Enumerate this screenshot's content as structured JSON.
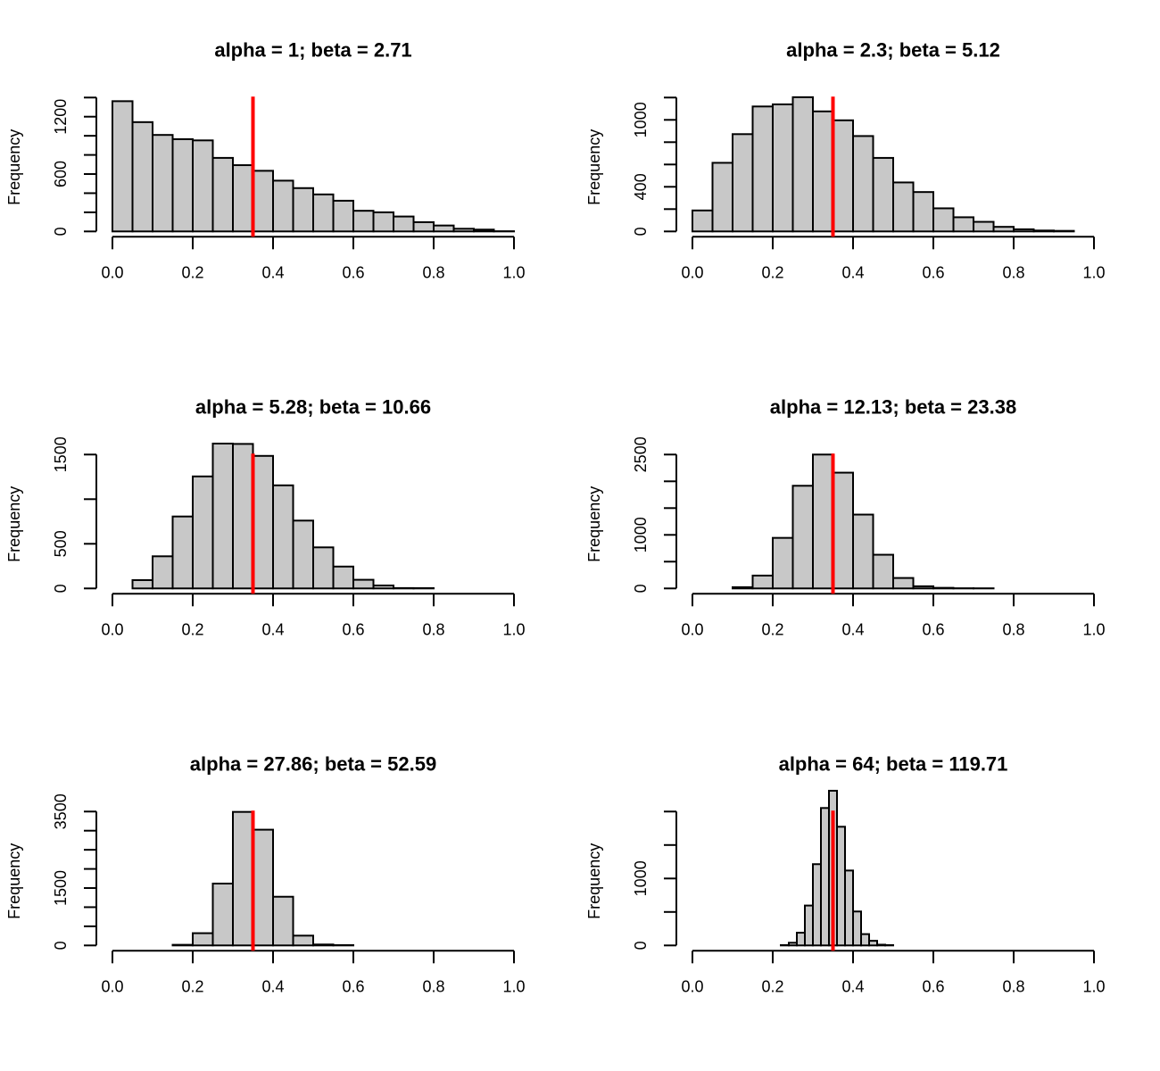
{
  "chart_data": [
    {
      "type": "bar",
      "subtype": "histogram",
      "title": "alpha = 1; beta = 2.71",
      "xlabel": "",
      "ylabel": "Frequency",
      "xlim": [
        0,
        1
      ],
      "ylim": [
        0,
        1400
      ],
      "x_ticks": [
        0.0,
        0.2,
        0.4,
        0.6,
        0.8,
        1.0
      ],
      "x_tick_labels": [
        "0.0",
        "0.2",
        "0.4",
        "0.6",
        "0.8",
        "1.0"
      ],
      "y_ticks": [
        0,
        200,
        400,
        600,
        800,
        1000,
        1200,
        1400
      ],
      "y_tick_labels": [
        "0",
        "",
        "",
        "600",
        "",
        "",
        "1200",
        ""
      ],
      "bin_width": 0.05,
      "bin_start": 0.0,
      "values": [
        1362,
        1143,
        1009,
        965,
        952,
        769,
        693,
        634,
        531,
        453,
        387,
        321,
        216,
        200,
        156,
        97,
        62,
        28,
        19,
        2
      ],
      "reference_line": 0.35,
      "reference_color": "#ff0000",
      "bar_color": "#c8c8c8",
      "grid": false
    },
    {
      "type": "bar",
      "subtype": "histogram",
      "title": "alpha = 2.3; beta = 5.12",
      "xlabel": "",
      "ylabel": "Frequency",
      "xlim": [
        0,
        1
      ],
      "ylim": [
        0,
        1200
      ],
      "x_ticks": [
        0.0,
        0.2,
        0.4,
        0.6,
        0.8,
        1.0
      ],
      "x_tick_labels": [
        "0.0",
        "0.2",
        "0.4",
        "0.6",
        "0.8",
        "1.0"
      ],
      "y_ticks": [
        0,
        200,
        400,
        600,
        800,
        1000,
        1200
      ],
      "y_tick_labels": [
        "0",
        "",
        "400",
        "",
        "",
        "1000",
        ""
      ],
      "bin_width": 0.05,
      "bin_start": 0.0,
      "values": [
        188,
        615,
        872,
        1120,
        1139,
        1203,
        1076,
        996,
        855,
        659,
        439,
        353,
        207,
        127,
        86,
        41,
        19,
        8,
        5
      ],
      "reference_line": 0.35,
      "reference_color": "#ff0000",
      "bar_color": "#c8c8c8",
      "grid": false
    },
    {
      "type": "bar",
      "subtype": "histogram",
      "title": "alpha = 5.28; beta = 10.66",
      "xlabel": "",
      "ylabel": "Frequency",
      "xlim": [
        0,
        1
      ],
      "ylim": [
        0,
        1500
      ],
      "x_ticks": [
        0.0,
        0.2,
        0.4,
        0.6,
        0.8,
        1.0
      ],
      "x_tick_labels": [
        "0.0",
        "0.2",
        "0.4",
        "0.6",
        "0.8",
        "1.0"
      ],
      "y_ticks": [
        0,
        500,
        1000,
        1500
      ],
      "y_tick_labels": [
        "0",
        "500",
        "",
        "1500"
      ],
      "bin_width": 0.05,
      "bin_start": 0.05,
      "values": [
        93,
        360,
        806,
        1255,
        1623,
        1619,
        1485,
        1155,
        760,
        460,
        245,
        97,
        33,
        4,
        3
      ],
      "reference_line": 0.35,
      "reference_color": "#ff0000",
      "bar_color": "#c8c8c8",
      "grid": false
    },
    {
      "type": "bar",
      "subtype": "histogram",
      "title": "alpha = 12.13; beta = 23.38",
      "xlabel": "",
      "ylabel": "Frequency",
      "xlim": [
        0,
        1
      ],
      "ylim": [
        0,
        2500
      ],
      "x_ticks": [
        0.0,
        0.2,
        0.4,
        0.6,
        0.8,
        1.0
      ],
      "x_tick_labels": [
        "0.0",
        "0.2",
        "0.4",
        "0.6",
        "0.8",
        "1.0"
      ],
      "y_ticks": [
        0,
        500,
        1000,
        1500,
        2000,
        2500
      ],
      "y_tick_labels": [
        "0",
        "",
        "1000",
        "",
        "",
        "2500"
      ],
      "bin_width": 0.05,
      "bin_start": 0.1,
      "values": [
        23,
        240,
        944,
        1917,
        2500,
        2162,
        1379,
        629,
        195,
        40,
        11,
        3,
        2
      ],
      "reference_line": 0.35,
      "reference_color": "#ff0000",
      "bar_color": "#c8c8c8",
      "grid": false
    },
    {
      "type": "bar",
      "subtype": "histogram",
      "title": "alpha = 27.86; beta = 52.59",
      "xlabel": "",
      "ylabel": "Frequency",
      "xlim": [
        0,
        1
      ],
      "ylim": [
        0,
        3500
      ],
      "x_ticks": [
        0.0,
        0.2,
        0.4,
        0.6,
        0.8,
        1.0
      ],
      "x_tick_labels": [
        "0.0",
        "0.2",
        "0.4",
        "0.6",
        "0.8",
        "1.0"
      ],
      "y_ticks": [
        0,
        500,
        1000,
        1500,
        2000,
        2500,
        3000,
        3500
      ],
      "y_tick_labels": [
        "0",
        "",
        "",
        "1500",
        "",
        "",
        "",
        "3500"
      ],
      "bin_width": 0.05,
      "bin_start": 0.15,
      "values": [
        16,
        320,
        1617,
        3491,
        3026,
        1273,
        256,
        24,
        8
      ],
      "reference_line": 0.35,
      "reference_color": "#ff0000",
      "bar_color": "#c8c8c8",
      "grid": false
    },
    {
      "type": "bar",
      "subtype": "histogram",
      "title": "alpha = 64; beta = 119.71",
      "xlabel": "",
      "ylabel": "Frequency",
      "xlim": [
        0,
        1
      ],
      "ylim": [
        0,
        2000
      ],
      "x_ticks": [
        0.0,
        0.2,
        0.4,
        0.6,
        0.8,
        1.0
      ],
      "x_tick_labels": [
        "0.0",
        "0.2",
        "0.4",
        "0.6",
        "0.8",
        "1.0"
      ],
      "y_ticks": [
        0,
        500,
        1000,
        1500,
        2000
      ],
      "y_tick_labels": [
        "0",
        "",
        "1000",
        "",
        ""
      ],
      "bin_width": 0.02,
      "bin_start": 0.22,
      "values": [
        5,
        40,
        190,
        596,
        1214,
        2053,
        2311,
        1773,
        1119,
        507,
        169,
        69,
        11,
        5
      ],
      "reference_line": 0.35,
      "reference_color": "#ff0000",
      "bar_color": "#c8c8c8",
      "grid": false
    }
  ]
}
